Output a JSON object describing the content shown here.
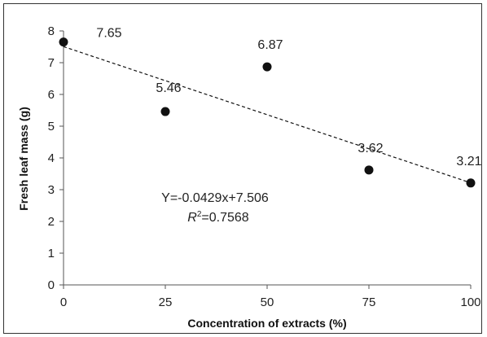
{
  "chart_data": {
    "type": "scatter",
    "title": "",
    "xlabel": "Concentration of extracts (%)",
    "ylabel": "Fresh leaf mass (g)",
    "xlim": [
      0,
      100
    ],
    "ylim": [
      0,
      8
    ],
    "xticks": [
      0,
      25,
      50,
      75,
      100
    ],
    "yticks": [
      0,
      1,
      2,
      3,
      4,
      5,
      6,
      7,
      8
    ],
    "grid": false,
    "points": [
      {
        "x": 0,
        "y": 7.65,
        "label": "7.65"
      },
      {
        "x": 25,
        "y": 5.46,
        "label": "5.46"
      },
      {
        "x": 50,
        "y": 6.87,
        "label": "6.87"
      },
      {
        "x": 75,
        "y": 3.62,
        "label": "3.62"
      },
      {
        "x": 100,
        "y": 3.21,
        "label": "3.21"
      }
    ],
    "trendline": {
      "slope": -0.0429,
      "intercept": 7.506,
      "style": "dashed",
      "equation": "Y=-0.0429x+7.506",
      "r2_label": "R",
      "r2_sup": "2",
      "r2_value": "=0.7568"
    },
    "colors": {
      "marker": "#111111",
      "line": "#111111"
    }
  }
}
